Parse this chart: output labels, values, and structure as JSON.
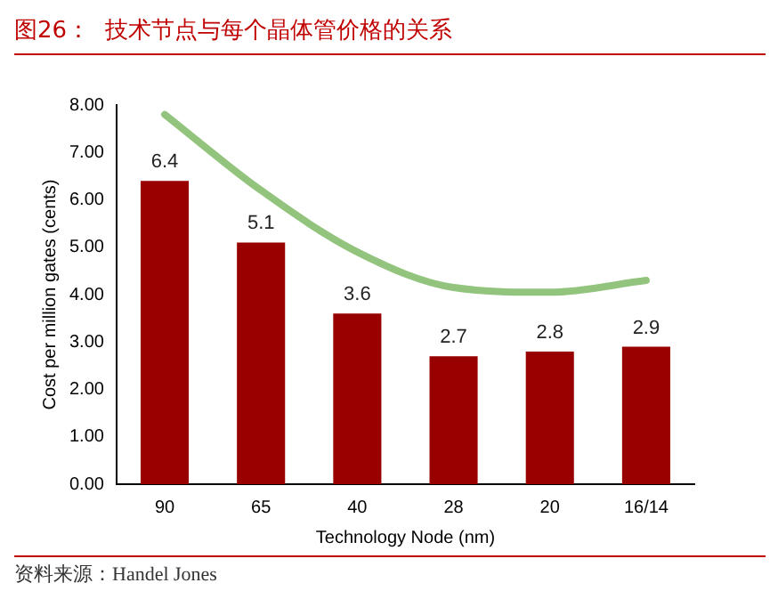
{
  "chart_data": {
    "type": "bar",
    "title": "图26：  技术节点与每个晶体管价格的关系",
    "xlabel": "Technology Node (nm)",
    "ylabel": "Cost per million gates (cents)",
    "categories": [
      "90",
      "65",
      "40",
      "28",
      "20",
      "16/14"
    ],
    "series": [
      {
        "color": "#990000",
        "values": [
          6.4,
          5.1,
          3.6,
          2.7,
          2.8,
          2.9
        ],
        "value_labels": [
          "6.4",
          "5.1",
          "3.6",
          "2.7",
          "2.8",
          "2.9"
        ]
      },
      {
        "type": "line",
        "color": "#93c47d",
        "values": [
          7.8,
          6.2,
          4.9,
          4.15,
          4.05,
          4.3
        ],
        "marker": "none"
      }
    ],
    "ylim": [
      0,
      8
    ],
    "yticks": [
      {
        "value": 0,
        "label": "0.00"
      },
      {
        "value": 1,
        "label": "1.00"
      },
      {
        "value": 2,
        "label": "2.00"
      },
      {
        "value": 3,
        "label": "3.00"
      },
      {
        "value": 4,
        "label": "4.00"
      },
      {
        "value": 5,
        "label": "5.00"
      },
      {
        "value": 6,
        "label": "6.00"
      },
      {
        "value": 7,
        "label": "7.00"
      },
      {
        "value": 8,
        "label": "8.00"
      }
    ],
    "grid": false,
    "legend": false,
    "annotations": [
      "资料来源：Handel Jones"
    ]
  }
}
